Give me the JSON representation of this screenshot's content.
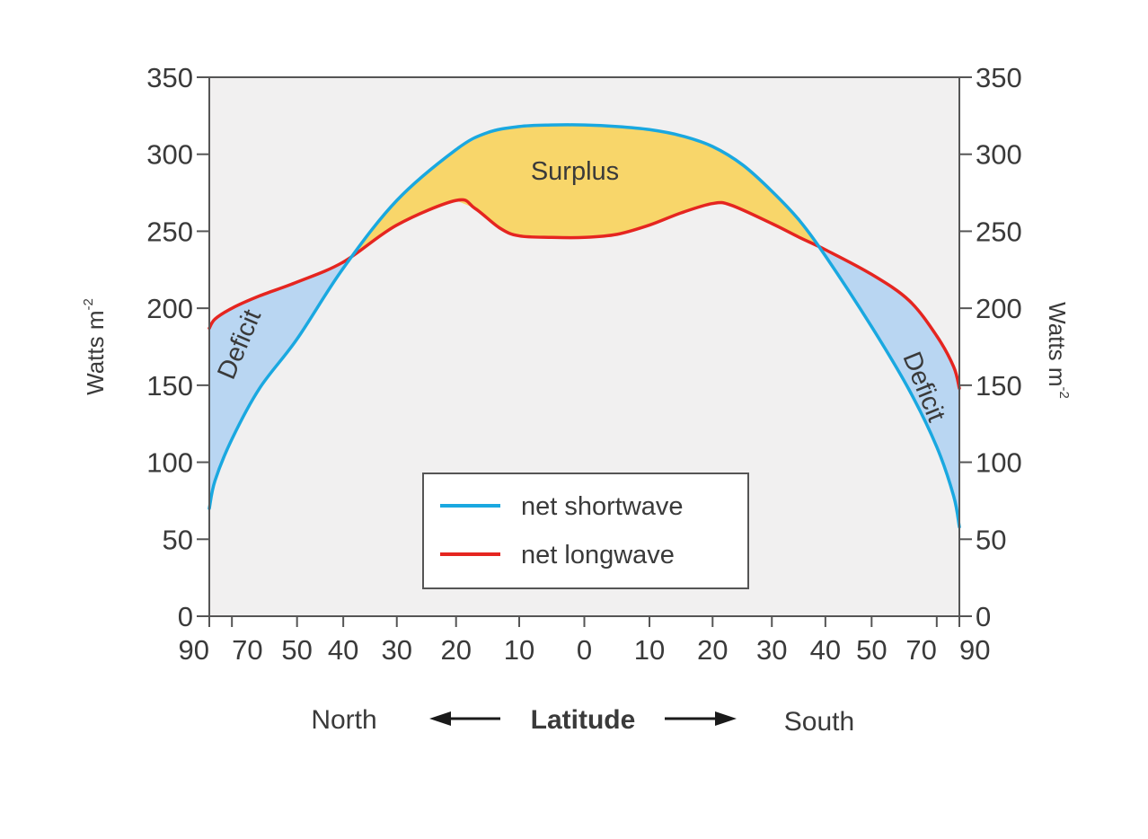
{
  "chart_data": {
    "type": "line",
    "xlabel": "Latitude",
    "direction_left": "North",
    "direction_right": "South",
    "ylabel_left": "Watts m",
    "ylabel_right": "Watts m",
    "ylabel_superscript": "-2",
    "ylim": [
      0,
      350
    ],
    "y_ticks": [
      "0",
      "50",
      "100",
      "150",
      "200",
      "250",
      "300",
      "350"
    ],
    "x_ticks": [
      "90",
      "70",
      "50",
      "40",
      "30",
      "20",
      "10",
      "0",
      "10",
      "20",
      "30",
      "40",
      "50",
      "70",
      "90"
    ],
    "x_scale": "sine of latitude (area-weighted)",
    "x_domain_signed_latitude": [
      90,
      -90
    ],
    "grid": false,
    "legend_position": "bottom-center",
    "series": [
      {
        "name": "net shortwave",
        "color": "#1aa8e0",
        "x": [
          90,
          80,
          70,
          60,
          50,
          40,
          30,
          20,
          15,
          10,
          5,
          0,
          -5,
          -10,
          -15,
          -20,
          -25,
          -30,
          -35,
          -40,
          -50,
          -60,
          -70,
          -80,
          -90
        ],
        "values": [
          70,
          88,
          115,
          148,
          180,
          226,
          270,
          303,
          314,
          318,
          319,
          319,
          318,
          316,
          312,
          305,
          293,
          276,
          257,
          234,
          188,
          147,
          110,
          78,
          58
        ]
      },
      {
        "name": "net longwave",
        "color": "#e52520",
        "x": [
          90,
          80,
          70,
          60,
          50,
          40,
          30,
          20,
          17,
          13,
          10,
          5,
          0,
          -5,
          -10,
          -15,
          -20,
          -23,
          -30,
          -35,
          -40,
          -50,
          -60,
          -70,
          -80,
          -90
        ],
        "values": [
          187,
          193,
          200,
          208,
          217,
          230,
          254,
          270,
          265,
          252,
          247,
          246,
          246,
          248,
          254,
          262,
          268,
          267,
          255,
          246,
          238,
          222,
          205,
          182,
          162,
          148
        ]
      }
    ],
    "annotations": [
      "Surplus",
      "Deficit",
      "Deficit"
    ],
    "fills": {
      "surplus": "#f8d66a",
      "deficit": "#b9d6f2"
    }
  }
}
